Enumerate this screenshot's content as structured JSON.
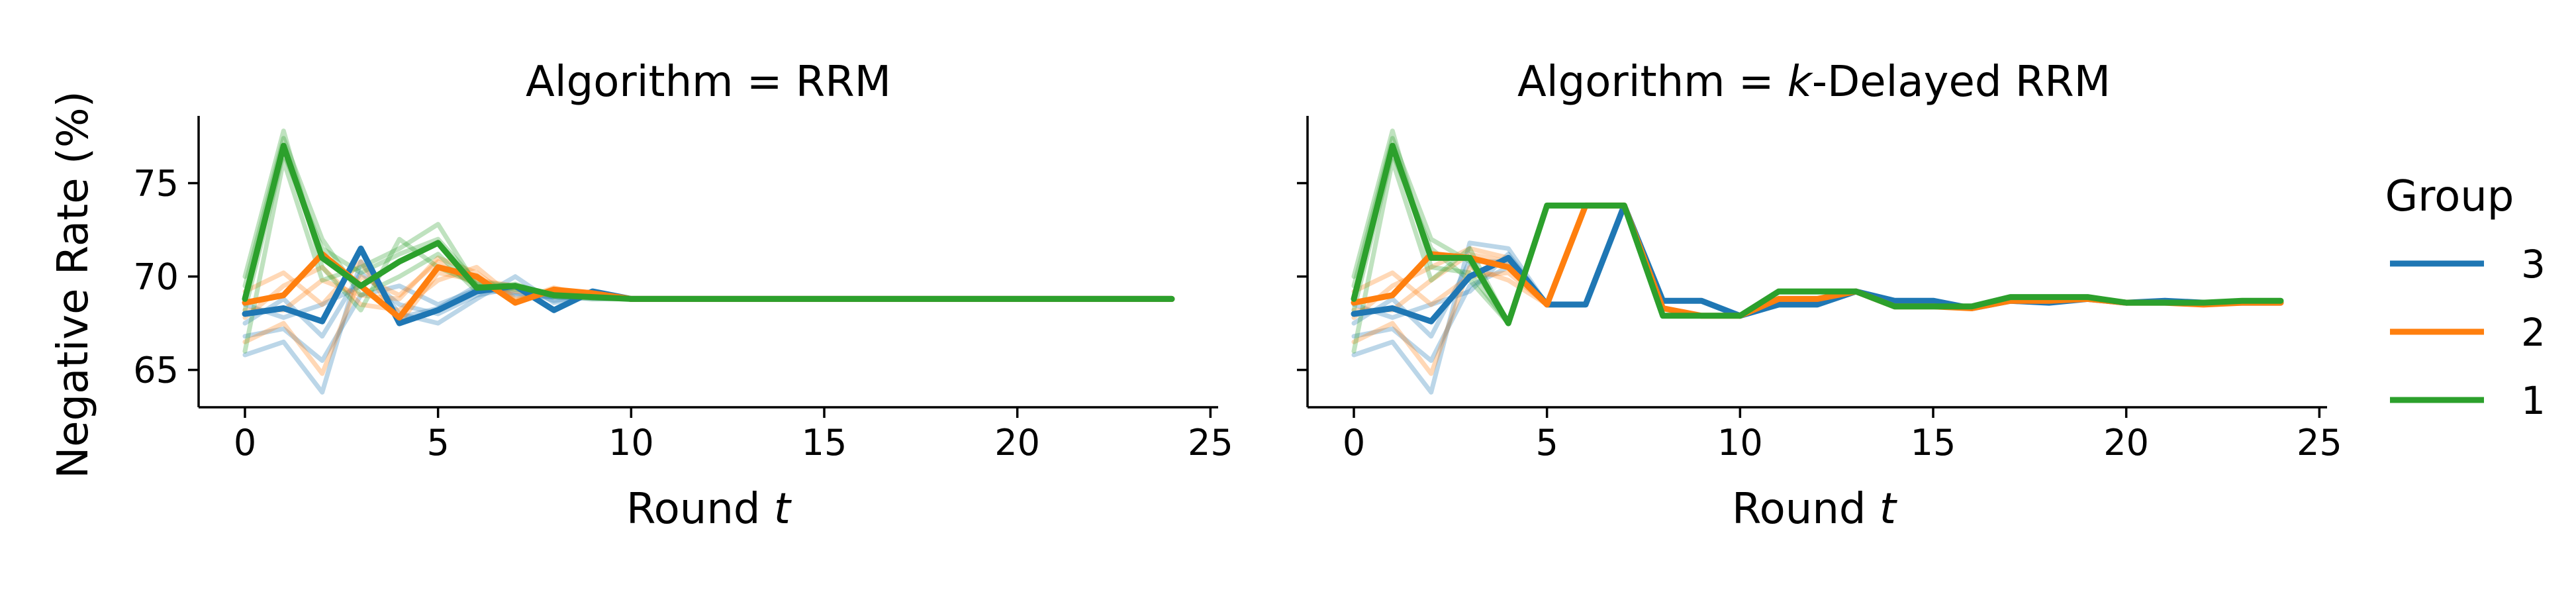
{
  "chart_data": [
    {
      "type": "line",
      "title_prefix": "Algorithm = ",
      "title_main": "RRM",
      "xlabel_prefix": "Round ",
      "xlabel_var": "t",
      "ylabel": "Negative Rate (%)",
      "xlim": [
        -1.2,
        25.2
      ],
      "ylim": [
        63.0,
        78.6
      ],
      "xticks": [
        0,
        5,
        10,
        15,
        20,
        25
      ],
      "yticks": [
        65,
        70,
        75
      ],
      "series": [
        {
          "name": "3",
          "color": "#1f77b4",
          "x": [
            0,
            1,
            2,
            3,
            4,
            5,
            6,
            7,
            8,
            9,
            10,
            11,
            12,
            13,
            14,
            15,
            16,
            17,
            18,
            19,
            20,
            21,
            22,
            23,
            24
          ],
          "y": [
            68.0,
            68.3,
            67.6,
            71.5,
            67.5,
            68.2,
            69.2,
            69.5,
            68.2,
            69.2,
            68.8,
            68.8,
            68.8,
            68.8,
            68.8,
            68.8,
            68.8,
            68.8,
            68.8,
            68.8,
            68.8,
            68.8,
            68.8,
            68.8,
            68.8
          ],
          "faint_runs": [
            [
              65.8,
              66.5,
              63.8,
              70.8,
              68.0,
              67.5,
              68.8,
              70.0,
              68.6,
              69.0,
              68.8
            ],
            [
              66.8,
              67.2,
              65.5,
              69.0,
              69.5,
              68.5,
              69.3,
              69.1,
              68.9,
              68.9,
              68.8
            ],
            [
              67.5,
              68.8,
              66.8,
              70.2,
              68.5,
              68.0,
              69.0,
              69.4,
              68.7,
              69.0,
              68.8
            ],
            [
              68.5,
              67.8,
              68.5,
              69.5,
              67.8,
              68.3,
              69.5,
              69.0,
              68.9,
              68.8,
              68.8
            ]
          ]
        },
        {
          "name": "2",
          "color": "#ff7f0e",
          "x": [
            0,
            1,
            2,
            3,
            4,
            5,
            6,
            7,
            8,
            9,
            10,
            11,
            12,
            13,
            14,
            15,
            16,
            17,
            18,
            19,
            20,
            21,
            22,
            23,
            24
          ],
          "y": [
            68.6,
            69.0,
            71.2,
            69.5,
            67.8,
            70.5,
            70.0,
            68.6,
            69.3,
            69.1,
            68.8,
            68.8,
            68.8,
            68.8,
            68.8,
            68.8,
            68.8,
            68.8,
            68.8,
            68.8,
            68.8,
            68.8,
            68.8,
            68.8,
            68.8
          ],
          "faint_runs": [
            [
              66.5,
              67.5,
              64.8,
              70.0,
              69.0,
              70.8,
              69.5,
              69.2,
              69.0,
              68.9,
              68.8
            ],
            [
              67.8,
              69.5,
              70.5,
              68.5,
              68.2,
              69.8,
              70.5,
              68.8,
              69.2,
              69.0,
              68.8
            ],
            [
              69.2,
              70.2,
              68.5,
              70.8,
              67.5,
              70.2,
              69.8,
              69.5,
              69.0,
              69.2,
              68.8
            ],
            [
              68.2,
              68.2,
              69.8,
              69.0,
              68.8,
              71.0,
              70.2,
              68.7,
              69.4,
              68.9,
              68.8
            ]
          ]
        },
        {
          "name": "1",
          "color": "#2ca02c",
          "x": [
            0,
            1,
            2,
            3,
            4,
            5,
            6,
            7,
            8,
            9,
            10,
            11,
            12,
            13,
            14,
            15,
            16,
            17,
            18,
            19,
            20,
            21,
            22,
            23,
            24
          ],
          "y": [
            68.8,
            77.0,
            71.0,
            69.5,
            70.8,
            71.8,
            69.4,
            69.5,
            69.0,
            68.9,
            68.8,
            68.8,
            68.8,
            68.8,
            68.8,
            68.8,
            68.8,
            68.8,
            68.8,
            68.8,
            68.8,
            68.8,
            68.8,
            68.8,
            68.8
          ],
          "faint_runs": [
            [
              70.0,
              77.8,
              70.5,
              68.2,
              72.0,
              70.5,
              69.6,
              69.3,
              69.1,
              68.9,
              68.8
            ],
            [
              66.0,
              76.2,
              69.8,
              70.5,
              71.5,
              72.8,
              69.5,
              69.4,
              69.0,
              68.9,
              68.8
            ],
            [
              69.5,
              77.4,
              72.0,
              69.0,
              70.0,
              71.2,
              69.2,
              69.6,
              68.9,
              68.9,
              68.8
            ],
            [
              68.2,
              76.6,
              71.5,
              70.2,
              71.2,
              72.0,
              69.7,
              69.5,
              69.0,
              68.8,
              68.8
            ]
          ]
        }
      ]
    },
    {
      "type": "line",
      "title_prefix": "Algorithm = ",
      "title_main": "-Delayed RRM",
      "title_italic": "k",
      "xlabel_prefix": "Round ",
      "xlabel_var": "t",
      "ylabel": "",
      "xlim": [
        -1.2,
        25.2
      ],
      "ylim": [
        63.0,
        78.6
      ],
      "xticks": [
        0,
        5,
        10,
        15,
        20,
        25
      ],
      "yticks": [
        65,
        70,
        75
      ],
      "series": [
        {
          "name": "3",
          "color": "#1f77b4",
          "x": [
            0,
            1,
            2,
            3,
            4,
            5,
            6,
            7,
            8,
            9,
            10,
            11,
            12,
            13,
            14,
            15,
            16,
            17,
            18,
            19,
            20,
            21,
            22,
            23,
            24
          ],
          "y": [
            68.0,
            68.3,
            67.6,
            70.0,
            71.0,
            68.5,
            68.5,
            73.8,
            68.7,
            68.7,
            67.9,
            68.5,
            68.5,
            69.2,
            68.7,
            68.7,
            68.3,
            68.7,
            68.6,
            68.8,
            68.6,
            68.7,
            68.6,
            68.6,
            68.6
          ],
          "faint_runs": [
            [
              65.8,
              66.5,
              63.8,
              71.8,
              71.5,
              68.5
            ],
            [
              66.8,
              67.2,
              65.5,
              69.5,
              70.5,
              68.5
            ],
            [
              67.5,
              68.8,
              66.8,
              70.8,
              70.8,
              68.5
            ],
            [
              68.5,
              67.8,
              68.5,
              69.2,
              71.2,
              68.5
            ]
          ]
        },
        {
          "name": "2",
          "color": "#ff7f0e",
          "x": [
            0,
            1,
            2,
            3,
            4,
            5,
            6,
            7,
            8,
            9,
            10,
            11,
            12,
            13,
            14,
            15,
            16,
            17,
            18,
            19,
            20,
            21,
            22,
            23,
            24
          ],
          "y": [
            68.6,
            69.0,
            71.2,
            71.0,
            70.5,
            68.5,
            73.8,
            73.8,
            68.3,
            67.9,
            67.9,
            68.8,
            68.8,
            69.2,
            68.4,
            68.4,
            68.3,
            68.7,
            68.7,
            68.8,
            68.6,
            68.6,
            68.5,
            68.6,
            68.6
          ],
          "faint_runs": [
            [
              66.5,
              67.5,
              64.8,
              70.5,
              69.8,
              68.5
            ],
            [
              67.8,
              69.5,
              70.5,
              71.5,
              71.0,
              68.5
            ],
            [
              69.2,
              70.2,
              68.5,
              70.0,
              70.2,
              68.5
            ],
            [
              68.2,
              68.2,
              69.8,
              71.2,
              70.8,
              68.5
            ]
          ]
        },
        {
          "name": "1",
          "color": "#2ca02c",
          "x": [
            0,
            1,
            2,
            3,
            4,
            5,
            6,
            7,
            8,
            9,
            10,
            11,
            12,
            13,
            14,
            15,
            16,
            17,
            18,
            19,
            20,
            21,
            22,
            23,
            24
          ],
          "y": [
            68.8,
            77.0,
            71.0,
            71.0,
            67.5,
            73.8,
            73.8,
            73.8,
            67.9,
            67.9,
            67.9,
            69.2,
            69.2,
            69.2,
            68.4,
            68.4,
            68.4,
            68.9,
            68.9,
            68.9,
            68.6,
            68.6,
            68.6,
            68.7,
            68.7
          ],
          "faint_runs": [
            [
              70.0,
              77.8,
              70.5,
              70.2,
              67.5,
              73.8
            ],
            [
              66.0,
              76.2,
              69.8,
              71.5,
              67.5,
              73.8
            ],
            [
              69.5,
              77.4,
              72.0,
              70.8,
              67.5,
              73.8
            ],
            [
              68.2,
              76.6,
              71.5,
              69.8,
              67.5,
              73.8
            ]
          ]
        }
      ]
    }
  ],
  "legend": {
    "title": "Group",
    "entries": [
      {
        "label": "3",
        "color": "#1f77b4"
      },
      {
        "label": "2",
        "color": "#ff7f0e"
      },
      {
        "label": "1",
        "color": "#2ca02c"
      }
    ]
  }
}
